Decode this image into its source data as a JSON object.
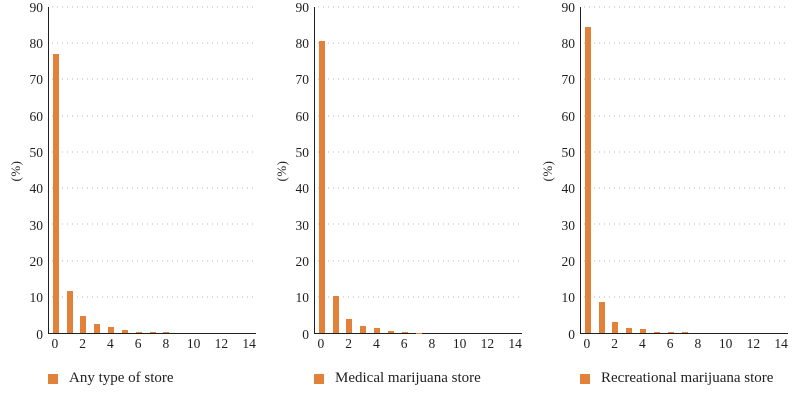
{
  "figure": {
    "background": "#ffffff",
    "bar_color": "#e2813a",
    "axis_color": "#1f1f1f",
    "grid_color": "#b5b5b5",
    "text_color": "#1f1f1f"
  },
  "chart_data": [
    {
      "type": "bar",
      "title": "",
      "legend": "Any type of store",
      "xlabel": "",
      "ylabel": "(%)",
      "ylim": [
        0,
        90
      ],
      "ytick_step": 10,
      "grid": "dotted horizontal",
      "legend_position": "bottom-left",
      "categories": [
        0,
        1,
        2,
        3,
        4,
        5,
        6,
        7,
        8,
        9,
        10,
        11,
        12,
        13,
        14
      ],
      "xtick_labels": [
        0,
        2,
        4,
        6,
        8,
        10,
        12,
        14
      ],
      "values": [
        77,
        11.5,
        4.8,
        2.4,
        1.7,
        0.9,
        0.3,
        0.4,
        0.2,
        0,
        0,
        0,
        0,
        0,
        0
      ]
    },
    {
      "type": "bar",
      "title": "",
      "legend": "Medical marijuana store",
      "xlabel": "",
      "ylabel": "(%)",
      "ylim": [
        0,
        90
      ],
      "ytick_step": 10,
      "grid": "dotted horizontal",
      "legend_position": "bottom-left",
      "categories": [
        0,
        1,
        2,
        3,
        4,
        5,
        6,
        7,
        8,
        9,
        10,
        11,
        12,
        13,
        14
      ],
      "xtick_labels": [
        0,
        2,
        4,
        6,
        8,
        10,
        12,
        14
      ],
      "values": [
        80.5,
        10.3,
        4.0,
        1.9,
        1.3,
        0.5,
        0.2,
        0.1,
        0,
        0,
        0,
        0,
        0,
        0,
        0
      ]
    },
    {
      "type": "bar",
      "title": "",
      "legend": "Recreational marijuana store",
      "xlabel": "",
      "ylabel": "(%)",
      "ylim": [
        0,
        90
      ],
      "ytick_step": 10,
      "grid": "dotted horizontal",
      "legend_position": "bottom-left",
      "categories": [
        0,
        1,
        2,
        3,
        4,
        5,
        6,
        7,
        8,
        9,
        10,
        11,
        12,
        13,
        14
      ],
      "xtick_labels": [
        0,
        2,
        4,
        6,
        8,
        10,
        12,
        14
      ],
      "values": [
        84.5,
        8.6,
        3.1,
        1.3,
        1.0,
        0.4,
        0.25,
        0.15,
        0,
        0,
        0,
        0,
        0,
        0,
        0
      ]
    }
  ]
}
